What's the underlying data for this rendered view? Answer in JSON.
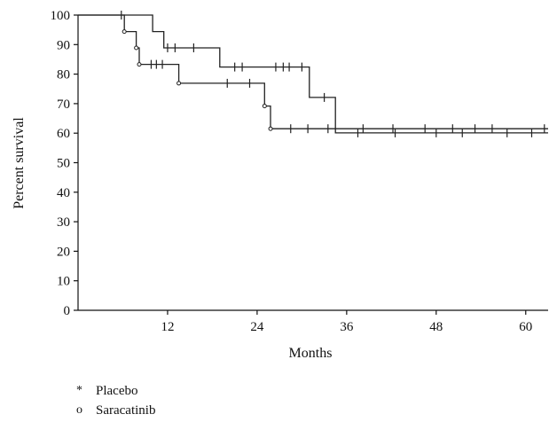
{
  "chart_data": {
    "type": "line",
    "subtype": "kaplan-meier",
    "xlabel": "Months",
    "ylabel": "Percent survival",
    "xlim": [
      0,
      63
    ],
    "ylim": [
      0,
      100
    ],
    "xticks": [
      12,
      24,
      36,
      48,
      60
    ],
    "yticks": [
      0,
      10,
      20,
      30,
      40,
      50,
      60,
      70,
      80,
      90,
      100
    ],
    "grid": false,
    "legend_position": "bottom-left",
    "series": [
      {
        "name": "Placebo",
        "marker": "*",
        "color": "#222222",
        "steps": [
          [
            0,
            100
          ],
          [
            10,
            100
          ],
          [
            10,
            94.4
          ],
          [
            11.5,
            94.4
          ],
          [
            11.5,
            88.9
          ],
          [
            19,
            88.9
          ],
          [
            19,
            82.4
          ],
          [
            31,
            82.4
          ],
          [
            31,
            72.1
          ],
          [
            34.5,
            72.1
          ],
          [
            34.5,
            60.1
          ],
          [
            63,
            60.1
          ]
        ],
        "censored": [
          [
            5.8,
            100
          ],
          [
            12,
            88.9
          ],
          [
            13,
            88.9
          ],
          [
            15.5,
            88.9
          ],
          [
            21,
            82.4
          ],
          [
            22,
            82.4
          ],
          [
            26.5,
            82.4
          ],
          [
            27.5,
            82.4
          ],
          [
            28.3,
            82.4
          ],
          [
            30,
            82.4
          ],
          [
            33,
            72.1
          ],
          [
            37.5,
            60.1
          ],
          [
            42.5,
            60.1
          ],
          [
            48,
            60.1
          ],
          [
            51.5,
            60.1
          ],
          [
            57.5,
            60.1
          ],
          [
            60.8,
            60.1
          ]
        ]
      },
      {
        "name": "Saracatinib",
        "marker": "o",
        "color": "#222222",
        "steps": [
          [
            0,
            100
          ],
          [
            6.2,
            100
          ],
          [
            6.2,
            94.4
          ],
          [
            7.8,
            94.4
          ],
          [
            7.8,
            88.9
          ],
          [
            8.2,
            88.9
          ],
          [
            8.2,
            83.3
          ],
          [
            13.5,
            83.3
          ],
          [
            13.5,
            76.9
          ],
          [
            25,
            76.9
          ],
          [
            25,
            69.2
          ],
          [
            25.8,
            69.2
          ],
          [
            25.8,
            61.5
          ],
          [
            63,
            61.5
          ]
        ],
        "censored": [
          [
            9.8,
            83.3
          ],
          [
            10.5,
            83.3
          ],
          [
            11.3,
            83.3
          ],
          [
            20,
            76.9
          ],
          [
            23,
            76.9
          ],
          [
            28.5,
            61.5
          ],
          [
            30.8,
            61.5
          ],
          [
            33.5,
            61.5
          ],
          [
            38.2,
            61.5
          ],
          [
            42.2,
            61.5
          ],
          [
            46.5,
            61.5
          ],
          [
            50.2,
            61.5
          ],
          [
            53.2,
            61.5
          ],
          [
            55.5,
            61.5
          ],
          [
            62.5,
            61.5
          ]
        ],
        "event_markers": [
          [
            6.2,
            94.4
          ],
          [
            7.8,
            88.9
          ],
          [
            8.2,
            83.3
          ],
          [
            13.5,
            76.9
          ],
          [
            25,
            69.2
          ],
          [
            25.8,
            61.5
          ]
        ]
      }
    ]
  }
}
